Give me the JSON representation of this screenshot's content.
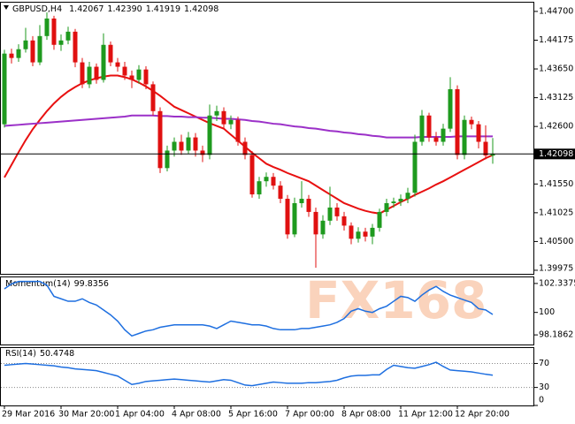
{
  "chart_data": [
    {
      "type": "candlestick",
      "title": "GBPUSD,H4",
      "header_values": [
        1.42067,
        {
          "value": 1.4239,
          "label": "1.42390"
        },
        1.41919,
        1.42098
      ],
      "open": [
        1.4264,
        1.4393,
        1.4385,
        1.4401,
        1.4417,
        1.4377,
        1.4425,
        1.4457,
        1.4409,
        1.4417,
        1.4433,
        1.4377,
        1.4337,
        1.4369,
        1.4345,
        1.4409,
        1.4377,
        1.4369,
        1.4353,
        1.4345,
        1.4364,
        1.4337,
        1.4288,
        1.4184,
        1.4216,
        1.4232,
        1.4216,
        1.424,
        1.4216,
        1.4208,
        1.428,
        1.4288,
        1.4264,
        1.4272,
        1.4232,
        1.4208,
        1.4136,
        1.416,
        1.4168,
        1.4152,
        1.4128,
        1.4063,
        1.412,
        1.4128,
        1.4104,
        1.4063,
        1.4088,
        1.4112,
        1.4096,
        1.4079,
        1.4055,
        1.4068,
        1.4059,
        1.4075,
        1.4104,
        1.412,
        1.4123,
        1.4128,
        1.4139,
        1.4232,
        1.428,
        1.424,
        1.4232,
        1.4256,
        1.4328,
        1.4208,
        1.4272,
        1.4264,
        1.4232,
        1.42067
      ],
      "high": [
        1.44,
        1.4402,
        1.441,
        1.444,
        1.4425,
        1.4445,
        1.4468,
        1.4462,
        1.4428,
        1.4442,
        1.4438,
        1.4385,
        1.4378,
        1.4375,
        1.443,
        1.4415,
        1.4385,
        1.4378,
        1.4362,
        1.4372,
        1.437,
        1.4342,
        1.4295,
        1.4225,
        1.424,
        1.4245,
        1.425,
        1.4248,
        1.4225,
        1.43,
        1.4298,
        1.4295,
        1.428,
        1.4278,
        1.424,
        1.4215,
        1.4168,
        1.4176,
        1.4175,
        1.416,
        1.4135,
        1.413,
        1.416,
        1.4135,
        1.4112,
        1.4098,
        1.415,
        1.412,
        1.4104,
        1.4085,
        1.4076,
        1.4075,
        1.4082,
        1.411,
        1.4128,
        1.413,
        1.4136,
        1.4148,
        1.4245,
        1.429,
        1.4285,
        1.425,
        1.4265,
        1.435,
        1.4335,
        1.428,
        1.4278,
        1.427,
        1.4262,
        1.4239
      ],
      "low": [
        1.4258,
        1.4375,
        1.4378,
        1.4395,
        1.437,
        1.4372,
        1.4418,
        1.44,
        1.4398,
        1.441,
        1.4368,
        1.433,
        1.433,
        1.4338,
        1.434,
        1.437,
        1.436,
        1.4345,
        1.433,
        1.4338,
        1.4328,
        1.428,
        1.4175,
        1.4178,
        1.4205,
        1.4208,
        1.421,
        1.4205,
        1.4195,
        1.42,
        1.427,
        1.4255,
        1.4255,
        1.4225,
        1.42,
        1.413,
        1.4128,
        1.415,
        1.4145,
        1.412,
        1.4055,
        1.4058,
        1.4112,
        1.4095,
        1.4002,
        1.4055,
        1.408,
        1.4088,
        1.407,
        1.4045,
        1.4048,
        1.405,
        1.4045,
        1.4068,
        1.4096,
        1.4112,
        1.4115,
        1.412,
        1.4132,
        1.4225,
        1.4232,
        1.4225,
        1.4225,
        1.425,
        1.42,
        1.42,
        1.4255,
        1.422,
        1.42,
        1.41919
      ],
      "close": [
        1.4393,
        1.4385,
        1.4401,
        1.4417,
        1.4377,
        1.4425,
        1.4457,
        1.4409,
        1.4417,
        1.4433,
        1.4377,
        1.4337,
        1.4369,
        1.4345,
        1.4409,
        1.4377,
        1.4369,
        1.4353,
        1.4345,
        1.4364,
        1.4337,
        1.4288,
        1.4184,
        1.4216,
        1.4232,
        1.4216,
        1.424,
        1.4216,
        1.4208,
        1.428,
        1.4288,
        1.4264,
        1.4272,
        1.4232,
        1.4208,
        1.4136,
        1.416,
        1.4168,
        1.4152,
        1.4128,
        1.4063,
        1.412,
        1.4128,
        1.4104,
        1.4063,
        1.4088,
        1.4112,
        1.4096,
        1.4079,
        1.4055,
        1.4068,
        1.4059,
        1.4075,
        1.4104,
        1.412,
        1.4123,
        1.4128,
        1.4139,
        1.4232,
        1.428,
        1.424,
        1.4232,
        1.4256,
        1.4328,
        1.4208,
        1.4272,
        1.4264,
        1.4232,
        1.4207,
        1.42098
      ],
      "up_color": "#1e9a1e",
      "down_color": "#e01010",
      "overlays": [
        {
          "color": "#e81010",
          "values": [
            1.4167,
            1.419,
            1.4213,
            1.4235,
            1.4255,
            1.4272,
            1.4288,
            1.4302,
            1.4314,
            1.4324,
            1.4332,
            1.4339,
            1.4344,
            1.4348,
            1.4351,
            1.4353,
            1.4353,
            1.435,
            1.4346,
            1.434,
            1.4333,
            1.4325,
            1.4316,
            1.4306,
            1.4296,
            1.429,
            1.4284,
            1.4278,
            1.4272,
            1.4266,
            1.4261,
            1.4256,
            1.4245,
            1.4234,
            1.4223,
            1.4212,
            1.4202,
            1.4192,
            1.4186,
            1.4181,
            1.4175,
            1.417,
            1.4165,
            1.416,
            1.4152,
            1.4144,
            1.4136,
            1.4128,
            1.412,
            1.4115,
            1.411,
            1.4106,
            1.4103,
            1.4101,
            1.4108,
            1.4115,
            1.4122,
            1.4128,
            1.4135,
            1.4141,
            1.4147,
            1.4154,
            1.416,
            1.4167,
            1.4174,
            1.4181,
            1.4188,
            1.4195,
            1.4202,
            1.4208
          ]
        },
        {
          "color": "#9b30c8",
          "values": [
            1.4261,
            1.4262,
            1.4263,
            1.4264,
            1.4265,
            1.4266,
            1.4267,
            1.4268,
            1.4269,
            1.427,
            1.4271,
            1.4272,
            1.4273,
            1.4274,
            1.4275,
            1.4276,
            1.4277,
            1.4278,
            1.428,
            1.428,
            1.428,
            1.428,
            1.4279,
            1.4279,
            1.4278,
            1.4278,
            1.4277,
            1.4277,
            1.4276,
            1.4276,
            1.4275,
            1.4274,
            1.4274,
            1.4273,
            1.4272,
            1.427,
            1.4269,
            1.4267,
            1.4265,
            1.4264,
            1.4262,
            1.426,
            1.4259,
            1.4257,
            1.4256,
            1.4254,
            1.4252,
            1.4251,
            1.4249,
            1.4248,
            1.4246,
            1.4245,
            1.4243,
            1.4242,
            1.424,
            1.424,
            1.424,
            1.424,
            1.424,
            1.4241,
            1.4241,
            1.4241,
            1.4241,
            1.4241,
            1.4242,
            1.4242,
            1.4242,
            1.4242,
            1.4242,
            1.4242
          ]
        }
      ],
      "current_price": 1.42098,
      "ylim": [
        1.3991,
        1.4486
      ],
      "yticks": [
        {
          "value": 1.447,
          "label": "1.44700"
        },
        1.44175,
        {
          "value": 1.4365,
          "label": "1.43650"
        },
        1.43125,
        {
          "value": 1.426,
          "label": "1.42600"
        },
        {
          "value": 1.4155,
          "label": "1.41550"
        },
        1.41025,
        {
          "value": 1.405,
          "label": "1.40500"
        },
        1.39975
      ],
      "watermark": "FX168"
    },
    {
      "type": "line",
      "title": "Momentum(14)",
      "last_value": 99.8356,
      "color": "#1e6fe0",
      "values": [
        101.9,
        102.3,
        102.5,
        102.5,
        102.5,
        102.5,
        102.2,
        101.3,
        101.1,
        100.9,
        100.9,
        101.1,
        100.8,
        100.6,
        100.2,
        99.8,
        99.3,
        98.6,
        98.1,
        98.3,
        98.5,
        98.6,
        98.8,
        98.9,
        99.0,
        99.0,
        99.0,
        99.0,
        99.0,
        98.9,
        98.7,
        99.0,
        99.3,
        99.2,
        99.1,
        99.0,
        99.0,
        98.9,
        98.7,
        98.6,
        98.6,
        98.6,
        98.7,
        98.7,
        98.8,
        98.9,
        99.0,
        99.2,
        99.5,
        100.1,
        100.3,
        100.1,
        100.0,
        100.3,
        100.5,
        100.9,
        101.3,
        101.2,
        100.9,
        101.4,
        101.8,
        102.1,
        101.7,
        101.4,
        101.2,
        101.0,
        100.8,
        100.3,
        100.2,
        99.8356
      ],
      "ylim": [
        97.41,
        102.83
      ],
      "yticks": [
        102.3375,
        100,
        98.1862
      ]
    },
    {
      "type": "line",
      "title": "RSI(14)",
      "last_value": 50.4748,
      "color": "#1e6fe0",
      "values": [
        67,
        68,
        69,
        70,
        69,
        68,
        67,
        66,
        64,
        63,
        61,
        60,
        59,
        58,
        55,
        52,
        49,
        42,
        35,
        37,
        40,
        41,
        42,
        43,
        44,
        43,
        42,
        41,
        40,
        39,
        41,
        43,
        42,
        38,
        34,
        33,
        35,
        37,
        39,
        38,
        37,
        37,
        37,
        38,
        38,
        39,
        40,
        42,
        46,
        49,
        50,
        50,
        51,
        51,
        60,
        67,
        65,
        63,
        62,
        65,
        68,
        72,
        65,
        59,
        58,
        57,
        56,
        54,
        52,
        50.4748
      ],
      "ylim": [
        0,
        95.7
      ],
      "yticks": [
        70,
        30,
        0
      ],
      "levels": [
        70,
        30
      ],
      "categories": [
        "29 Mar 2016",
        null,
        null,
        null,
        null,
        null,
        null,
        null,
        "30 Mar 20:00",
        null,
        null,
        null,
        null,
        null,
        null,
        null,
        "1 Apr 04:00",
        null,
        null,
        null,
        null,
        null,
        null,
        null,
        "4 Apr 08:00",
        null,
        null,
        null,
        null,
        null,
        null,
        null,
        "5 Apr 16:00",
        null,
        null,
        null,
        null,
        null,
        null,
        null,
        "7 Apr 00:00",
        null,
        null,
        null,
        null,
        null,
        null,
        null,
        "8 Apr 08:00",
        null,
        null,
        null,
        null,
        null,
        null,
        null,
        "11 Apr 12:00",
        null,
        null,
        null,
        null,
        null,
        null,
        null,
        "12 Apr 20:00",
        null,
        null,
        null,
        null,
        null
      ]
    }
  ]
}
